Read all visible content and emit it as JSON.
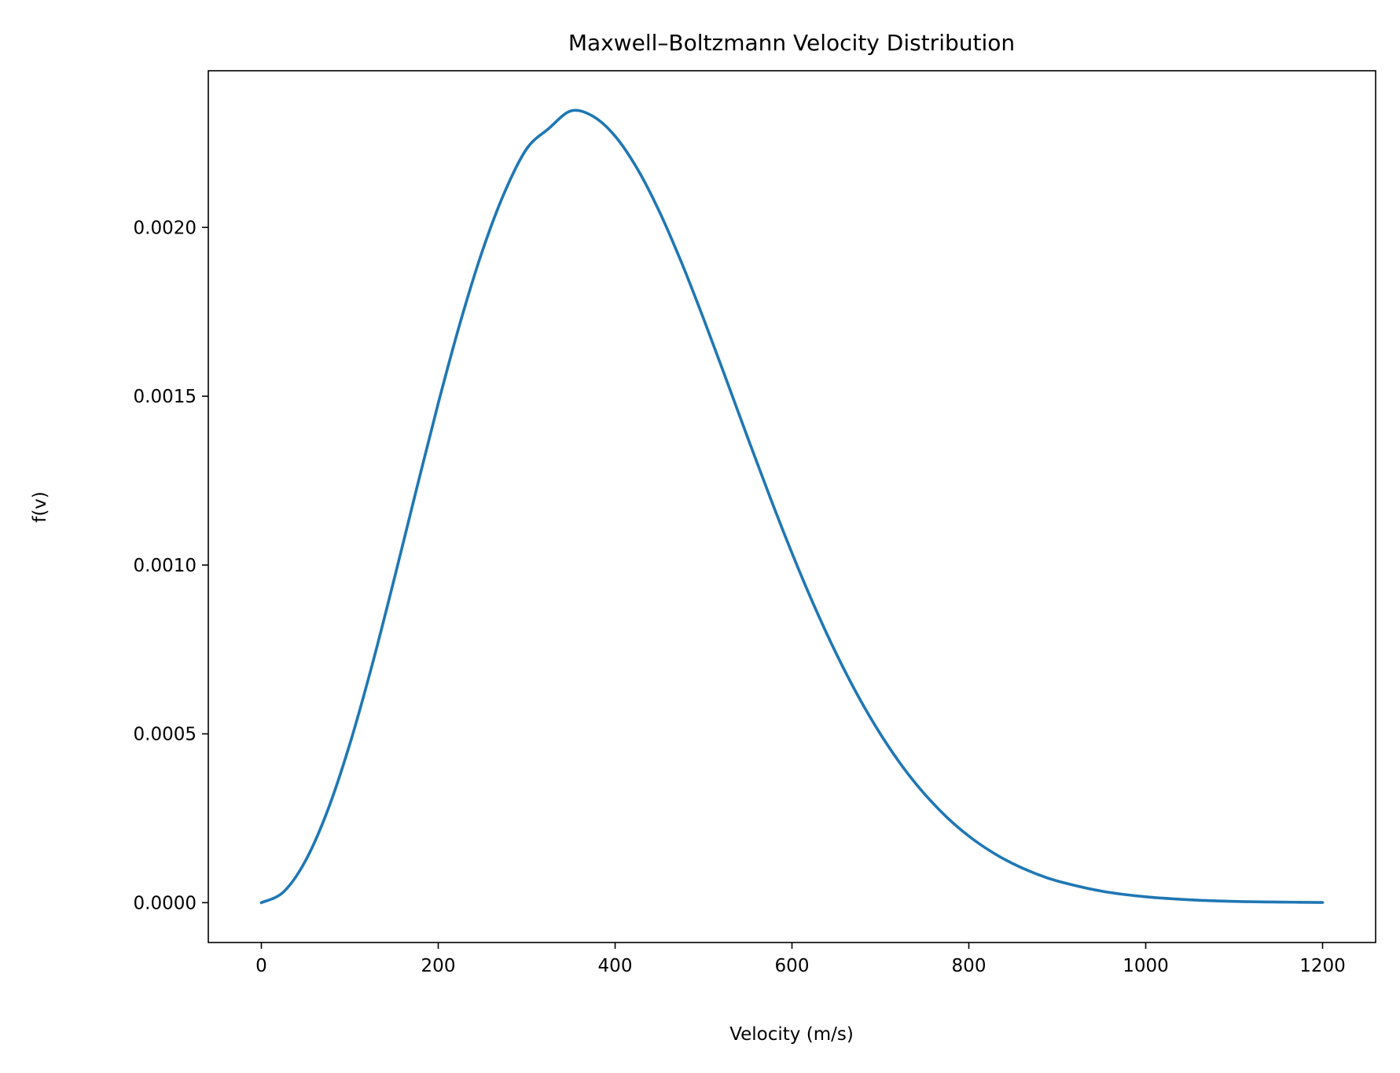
{
  "chart_data": {
    "type": "line",
    "title": "Maxwell–Boltzmann Velocity Distribution",
    "xlabel": "Velocity (m/s)",
    "ylabel": "f(v)",
    "xlim": [
      -60,
      1260
    ],
    "ylim": [
      -0.000118,
      0.002464
    ],
    "xticks": [
      0,
      200,
      400,
      600,
      800,
      1000,
      1200
    ],
    "xtick_labels": [
      "0",
      "200",
      "400",
      "600",
      "800",
      "1000",
      "1200"
    ],
    "yticks": [
      0,
      0.0005,
      0.001,
      0.0015,
      0.002
    ],
    "ytick_labels": [
      "0.0000",
      "0.0005",
      "0.0010",
      "0.0015",
      "0.0020"
    ],
    "grid": false,
    "series": [
      {
        "color": "#1f77b4",
        "x": [
          0,
          25,
          50,
          75,
          100,
          125,
          150,
          175,
          200,
          225,
          250,
          275,
          300,
          325,
          350,
          375,
          400,
          425,
          450,
          475,
          500,
          525,
          550,
          575,
          600,
          625,
          650,
          675,
          700,
          725,
          750,
          775,
          800,
          825,
          850,
          875,
          900,
          950,
          1000,
          1050,
          1100,
          1150,
          1200
        ],
        "y": [
          0,
          3.16e-05,
          0.0001247,
          0.0002736,
          0.0004697,
          0.0007017,
          0.0009565,
          0.0012202,
          0.0014789,
          0.0017195,
          0.001931,
          0.002104,
          0.0022328,
          0.0022929,
          0.0023449,
          0.0023291,
          0.0022704,
          0.0021742,
          0.0020473,
          0.0018965,
          0.0017298,
          0.0015546,
          0.0013766,
          0.0012023,
          0.0010355,
          0.00088,
          0.0007381,
          0.000611,
          0.0004996,
          0.0004032,
          0.0003217,
          0.0002533,
          0.0001972,
          0.0001517,
          0.0001153,
          8.66e-05,
          6.43e-05,
          3.43e-05,
          1.74e-05,
          8.5e-06,
          3.9e-06,
          1.8e-06,
          7e-07
        ]
      }
    ]
  }
}
